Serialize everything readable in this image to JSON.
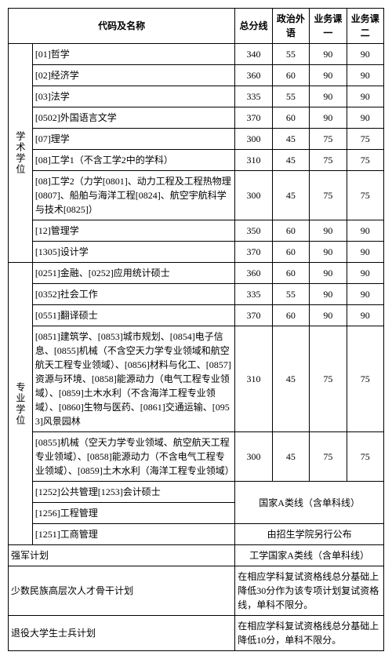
{
  "headers": {
    "code_name": "代码及名称",
    "total": "总分线",
    "politics_lang": "政治外语",
    "course1": "业务课一",
    "course2": "业务课二"
  },
  "cat1": "学术学位",
  "cat2": "专业学位",
  "rows_academic": [
    {
      "label": "[01]哲学",
      "total": "340",
      "c1": "55",
      "c2": "90",
      "c3": "90"
    },
    {
      "label": "[02]经济学",
      "total": "360",
      "c1": "60",
      "c2": "90",
      "c3": "90"
    },
    {
      "label": "[03]法学",
      "total": "335",
      "c1": "55",
      "c2": "90",
      "c3": "90"
    },
    {
      "label": "[0502]外国语言文学",
      "total": "370",
      "c1": "60",
      "c2": "90",
      "c3": "90"
    },
    {
      "label": "[07]理学",
      "total": "300",
      "c1": "45",
      "c2": "75",
      "c3": "75"
    },
    {
      "label": "[08]工学1（不含工学2中的学科）",
      "total": "310",
      "c1": "45",
      "c2": "75",
      "c3": "75"
    },
    {
      "label": "[08]工学2（力学[0801]、动力工程及工程热物理[0807]、船舶与海洋工程[0824]、航空宇航科学与技术[0825]）",
      "total": "300",
      "c1": "45",
      "c2": "75",
      "c3": "75"
    },
    {
      "label": "[12]管理学",
      "total": "350",
      "c1": "60",
      "c2": "90",
      "c3": "90"
    },
    {
      "label": "[1305]设计学",
      "total": "370",
      "c1": "60",
      "c2": "90",
      "c3": "90"
    }
  ],
  "rows_prof": [
    {
      "label": "[0251]金融、[0252]应用统计硕士",
      "total": "360",
      "c1": "60",
      "c2": "90",
      "c3": "90"
    },
    {
      "label": "[0352]社会工作",
      "total": "335",
      "c1": "55",
      "c2": "90",
      "c3": "90"
    },
    {
      "label": "[0551]翻译硕士",
      "total": "370",
      "c1": "60",
      "c2": "90",
      "c3": "90"
    },
    {
      "label": "[0851]建筑学、[0853]城市规划、[0854]电子信息、[0855]机械（不含空天力学专业领域和航空航天工程专业领域）、[0856]材料与化工、[0857]资源与环境、[0858]能源动力（电气工程专业领域）、[0859]土木水利（不含海洋工程专业领域）、[0860]生物与医药、[0861]交通运输、[0953]风景园林",
      "total": "310",
      "c1": "45",
      "c2": "75",
      "c3": "75"
    },
    {
      "label": "[0855]机械（空天力学专业领域、航空航天工程专业领域）、[0858]能源动力（不含电气工程专业领域）、[0859]土木水利（海洋工程专业领域）",
      "total": "300",
      "c1": "45",
      "c2": "75",
      "c3": "75"
    }
  ],
  "prof_special": {
    "r1": "[1252]公共管理[1253]会计硕士",
    "r2": "[1256]工程管理",
    "note1": "国家A类线（含单科线）",
    "r3": "[1251]工商管理",
    "note2": "由招生学院另行公布"
  },
  "bottom": {
    "b1_label": "强军计划",
    "b1_val": "工学国家A类线（含单科线）",
    "b2_label": "少数民族高层次人才骨干计划",
    "b2_val": "在相应学科复试资格线总分基础上降低30分作为该专项计划复试资格线，单科不限分。",
    "b3_label": "退役大学生士兵计划",
    "b3_val": "在相应学科复试资格线总分基础上降低10分，单科不限分。"
  }
}
